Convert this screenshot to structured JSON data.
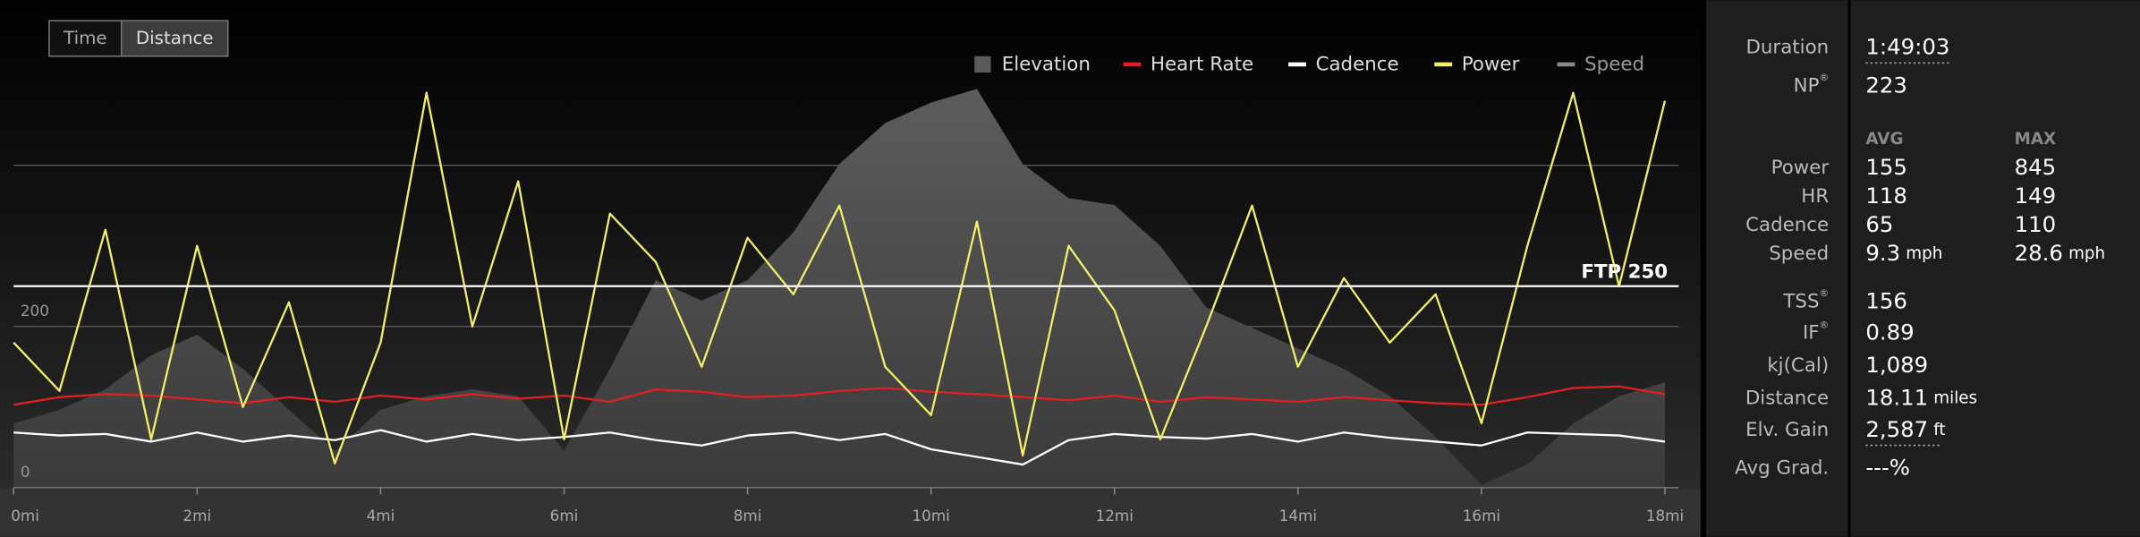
{
  "view_toggle": {
    "options": [
      "Time",
      "Distance"
    ],
    "selected": "Distance"
  },
  "chart_data": {
    "type": "line",
    "x": [
      0,
      0.5,
      1,
      1.5,
      2,
      2.5,
      3,
      3.5,
      4,
      4.5,
      5,
      5.5,
      6,
      6.5,
      7,
      7.5,
      8,
      8.5,
      9,
      9.5,
      10,
      10.5,
      11,
      11.5,
      12,
      12.5,
      13,
      13.5,
      14,
      14.5,
      15,
      15.5,
      16,
      16.5,
      17,
      17.5,
      18
    ],
    "xlim": [
      0,
      18.15
    ],
    "xticks": [
      {
        "value": 0,
        "label": "0mi"
      },
      {
        "value": 2,
        "label": "2mi"
      },
      {
        "value": 4,
        "label": "4mi"
      },
      {
        "value": 6,
        "label": "6mi"
      },
      {
        "value": 8,
        "label": "8mi"
      },
      {
        "value": 10,
        "label": "10mi"
      },
      {
        "value": 12,
        "label": "12mi"
      },
      {
        "value": 14,
        "label": "14mi"
      },
      {
        "value": 16,
        "label": "16mi"
      },
      {
        "value": 18,
        "label": "18mi"
      }
    ],
    "ylim": [
      0,
      571
    ],
    "yticks": [
      0,
      200
    ],
    "gridlines": [
      200,
      400
    ],
    "y2lim": [
      0,
      600
    ],
    "y3lim": [
      0,
      1011
    ],
    "ftp": {
      "value": 250,
      "label": "FTP 250"
    },
    "series": [
      {
        "name": "Elevation",
        "color": "#5a5a5a",
        "style": "area",
        "axis": "y3",
        "values": [
          141,
          171,
          216,
          291,
          336,
          261,
          171,
          81,
          171,
          201,
          216,
          201,
          81,
          261,
          456,
          411,
          456,
          561,
          711,
          801,
          846,
          876,
          711,
          636,
          621,
          531,
          396,
          351,
          306,
          261,
          201,
          111,
          6,
          51,
          141,
          201,
          231
        ]
      },
      {
        "name": "Heart Rate",
        "color": "#e02020",
        "axis": "y2",
        "values": [
          108,
          118,
          122,
          120,
          115,
          110,
          118,
          112,
          120,
          115,
          122,
          116,
          120,
          112,
          128,
          125,
          118,
          120,
          126,
          130,
          125,
          122,
          118,
          114,
          120,
          112,
          118,
          115,
          112,
          118,
          114,
          110,
          108,
          118,
          130,
          132,
          122
        ]
      },
      {
        "name": "Cadence",
        "color": "#ffffff",
        "axis": "y2",
        "values": [
          72,
          68,
          70,
          60,
          72,
          60,
          68,
          62,
          75,
          60,
          70,
          62,
          66,
          72,
          62,
          55,
          68,
          72,
          62,
          70,
          50,
          40,
          30,
          62,
          70,
          66,
          64,
          70,
          60,
          72,
          65,
          60,
          55,
          72,
          70,
          68,
          60
        ]
      },
      {
        "name": "Power",
        "color": "#f2ee6a",
        "values": [
          180,
          120,
          320,
          60,
          300,
          100,
          230,
          30,
          180,
          490,
          200,
          380,
          60,
          340,
          280,
          150,
          310,
          240,
          350,
          150,
          90,
          330,
          40,
          300,
          220,
          60,
          200,
          350,
          150,
          260,
          180,
          240,
          80,
          300,
          490,
          250,
          480
        ]
      },
      {
        "name": "Speed",
        "color": "#8a8a8a",
        "visible": false
      }
    ]
  },
  "stats": {
    "top": [
      {
        "label": "Duration",
        "value": "1:49:03",
        "underline": true
      },
      {
        "label": "NP",
        "sup": "®",
        "value": "223"
      }
    ],
    "headers": [
      "AVG",
      "MAX"
    ],
    "rows": [
      {
        "label": "Power",
        "avg": "155",
        "max": "845"
      },
      {
        "label": "HR",
        "avg": "118",
        "max": "149"
      },
      {
        "label": "Cadence",
        "avg": "65",
        "max": "110"
      },
      {
        "label": "Speed",
        "avg": "9.3",
        "avg_unit": "mph",
        "max": "28.6",
        "max_unit": "mph"
      }
    ],
    "bottom": [
      {
        "label": "TSS",
        "sup": "®",
        "value": "156"
      },
      {
        "label": "IF",
        "sup": "®",
        "value": "0.89"
      },
      {
        "label": "kj(Cal)",
        "value": "1,089"
      },
      {
        "label": "Distance",
        "value": "18.11",
        "unit": "miles"
      },
      {
        "label": "Elv. Gain",
        "value": "2,587",
        "unit": "ft",
        "underline": true
      },
      {
        "label": "Avg Grad.",
        "value": "---%"
      }
    ]
  }
}
